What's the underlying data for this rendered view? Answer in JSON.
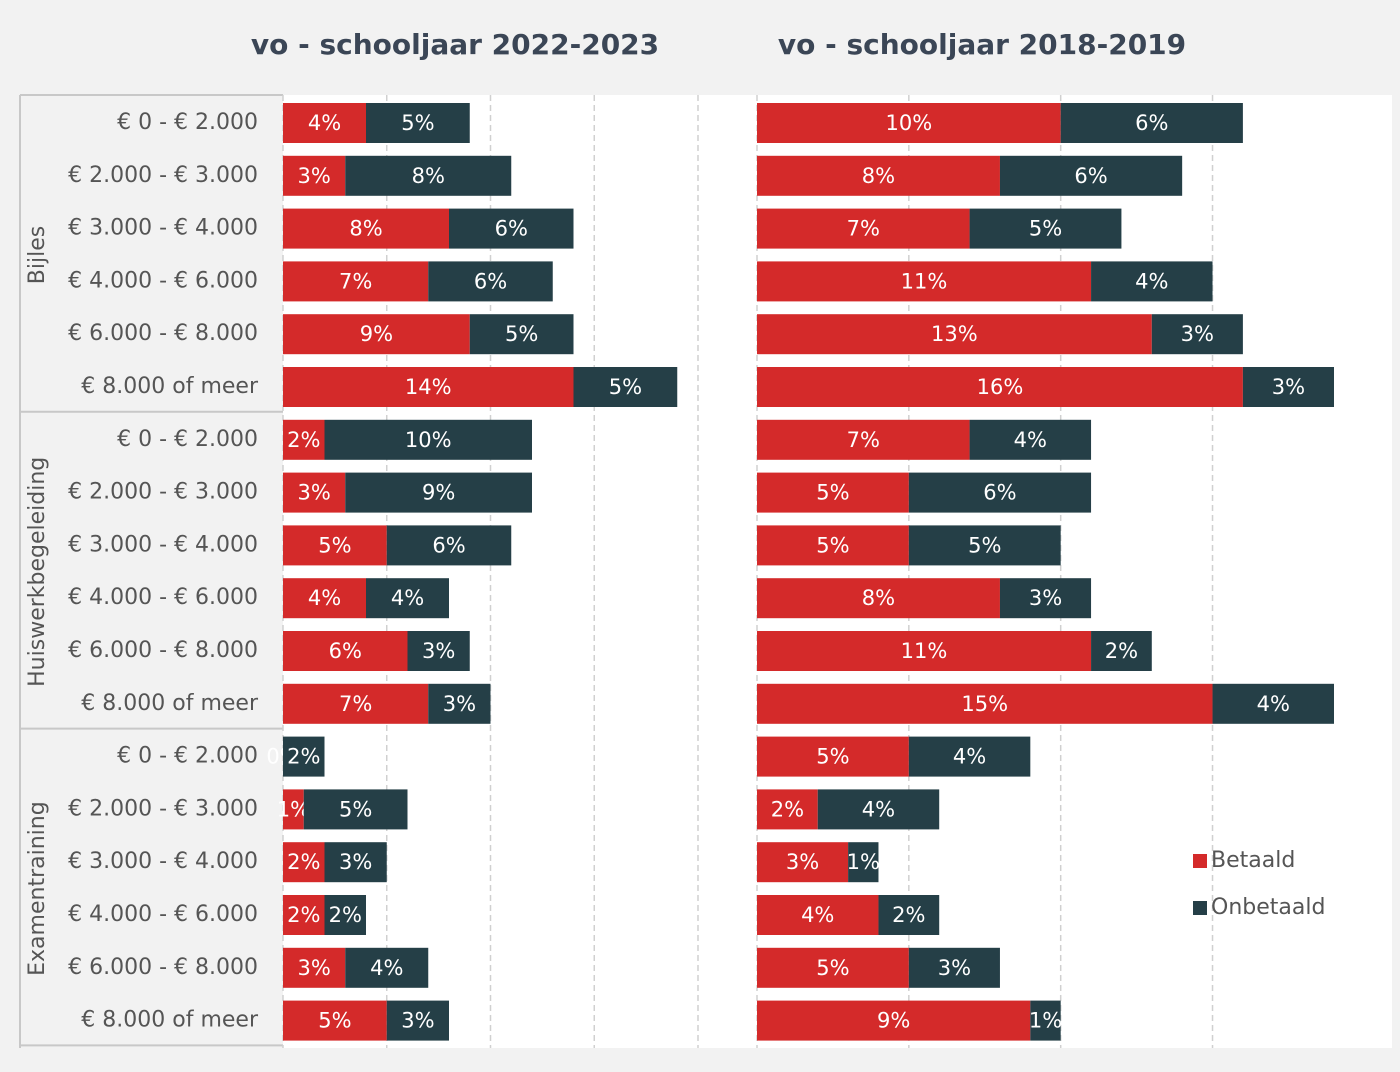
{
  "chart_data": [
    {
      "type": "stacked-bar-horizontal",
      "title": "vo - schooljaar 2022-2023",
      "groups": [
        {
          "name": "Bijles",
          "categories": [
            "€ 0 - € 2.000",
            "€ 2.000 - € 3.000",
            "€ 3.000 - € 4.000",
            "€ 4.000 - € 6.000",
            "€ 6.000 - € 8.000",
            "€ 8.000 of meer"
          ]
        },
        {
          "name": "Huiswerkbegeleiding",
          "categories": [
            "€ 0 - € 2.000",
            "€ 2.000 - € 3.000",
            "€ 3.000 - € 4.000",
            "€ 4.000 - € 6.000",
            "€ 6.000 - € 8.000",
            "€ 8.000 of meer"
          ]
        },
        {
          "name": "Examentraining",
          "categories": [
            "€ 0 - € 2.000",
            "€ 2.000 - € 3.000",
            "€ 3.000 - € 4.000",
            "€ 4.000 - € 6.000",
            "€ 6.000 - € 8.000",
            "€ 8.000 of meer"
          ]
        }
      ],
      "series": [
        {
          "name": "Betaald",
          "color": "#d42a2a",
          "values": [
            4,
            3,
            8,
            7,
            9,
            14,
            2,
            3,
            5,
            4,
            6,
            7,
            0,
            1,
            2,
            2,
            3,
            5
          ],
          "value_labels": [
            "4%",
            "3%",
            "8%",
            "7%",
            "9%",
            "14%",
            "2%",
            "3%",
            "5%",
            "4%",
            "6%",
            "7%",
            "0%",
            "1%",
            "2%",
            "2%",
            "3%",
            "5%"
          ]
        },
        {
          "name": "Onbetaald",
          "color": "#253f47",
          "values": [
            5,
            8,
            6,
            6,
            5,
            5,
            10,
            9,
            6,
            4,
            3,
            3,
            2,
            5,
            3,
            2,
            4,
            3
          ],
          "value_labels": [
            "5%",
            "8%",
            "6%",
            "6%",
            "5%",
            "5%",
            "10%",
            "9%",
            "6%",
            "4%",
            "3%",
            "3%",
            "2%",
            "5%",
            "3%",
            "2%",
            "4%",
            "3%"
          ]
        }
      ],
      "xlim": [
        0,
        20
      ],
      "xticks": [
        0,
        5,
        10,
        15,
        20
      ],
      "grid": true
    },
    {
      "type": "stacked-bar-horizontal",
      "title": "vo -  schooljaar 2018-2019",
      "series": [
        {
          "name": "Betaald",
          "color": "#d42a2a",
          "values": [
            10,
            8,
            7,
            11,
            13,
            16,
            7,
            5,
            5,
            8,
            11,
            15,
            5,
            2,
            3,
            4,
            5,
            9
          ],
          "value_labels": [
            "10%",
            "8%",
            "7%",
            "11%",
            "13%",
            "16%",
            "7%",
            "5%",
            "5%",
            "8%",
            "11%",
            "15%",
            "5%",
            "2%",
            "3%",
            "4%",
            "5%",
            "9%"
          ]
        },
        {
          "name": "Onbetaald",
          "color": "#253f47",
          "values": [
            6,
            6,
            5,
            4,
            3,
            3,
            4,
            6,
            5,
            3,
            2,
            4,
            4,
            4,
            1,
            2,
            3,
            1
          ],
          "value_labels": [
            "6%",
            "6%",
            "5%",
            "4%",
            "3%",
            "3%",
            "4%",
            "6%",
            "5%",
            "3%",
            "2%",
            "4%",
            "4%",
            "4%",
            "1%",
            "2%",
            "3%",
            "1%"
          ]
        }
      ],
      "xlim": [
        0,
        19
      ],
      "xticks": [
        0,
        5,
        10,
        15
      ],
      "grid": true,
      "legend": "center right"
    }
  ]
}
